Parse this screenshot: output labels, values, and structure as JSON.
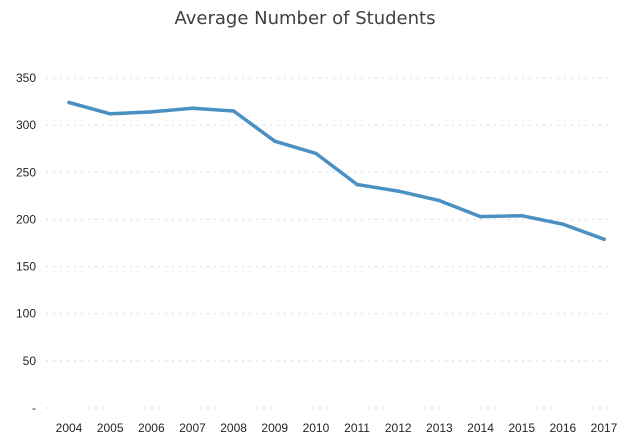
{
  "chart_data": {
    "type": "line",
    "title": "Average Number of Students",
    "xlabel": "",
    "ylabel": "",
    "x": [
      "2004",
      "2005",
      "2006",
      "2007",
      "2008",
      "2009",
      "2010",
      "2011",
      "2012",
      "2013",
      "2014",
      "2015",
      "2016",
      "2017"
    ],
    "series": [
      {
        "values": [
          324,
          312,
          314,
          318,
          315,
          283,
          270,
          237,
          230,
          220,
          203,
          204,
          195,
          179
        ]
      }
    ],
    "ylim": [
      0,
      350
    ],
    "yticks": [
      0,
      50,
      100,
      150,
      200,
      250,
      300,
      350
    ],
    "ytick_labels": [
      "-",
      "50",
      "100",
      "150",
      "200",
      "250",
      "300",
      "350"
    ],
    "grid": true,
    "legend": "none",
    "colors": {
      "line": "#4a90c2",
      "grid": "#d9d9d9",
      "text": "#262626"
    }
  }
}
